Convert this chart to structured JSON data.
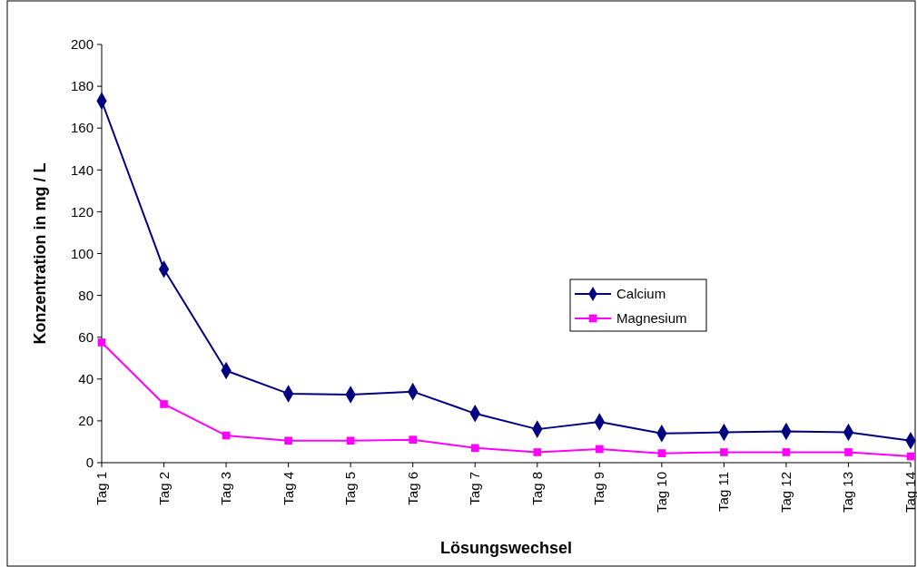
{
  "chart_data": {
    "type": "line",
    "xlabel": "Lösungswechsel",
    "ylabel": "Konzentration in mg / L",
    "categories": [
      "Tag 1",
      "Tag 2",
      "Tag 3",
      "Tag 4",
      "Tag 5",
      "Tag 6",
      "Tag 7",
      "Tag 8",
      "Tag 9",
      "Tag 10",
      "Tag 11",
      "Tag 12",
      "Tag 13",
      "Tag 14"
    ],
    "series": [
      {
        "name": "Calcium",
        "color": "#000080",
        "marker": "diamond",
        "values": [
          173,
          92.5,
          44,
          33,
          32.5,
          34,
          23.5,
          16,
          19.5,
          14,
          14.5,
          15,
          14.5,
          10.5
        ]
      },
      {
        "name": "Magnesium",
        "color": "#ff00ff",
        "marker": "square",
        "values": [
          57.5,
          28,
          13,
          10.5,
          10.5,
          11,
          7,
          5,
          6.5,
          4.5,
          5,
          5,
          5,
          3
        ]
      }
    ],
    "ylim": [
      0,
      200
    ],
    "yticks": [
      0,
      20,
      40,
      60,
      80,
      100,
      120,
      140,
      160,
      180,
      200
    ],
    "grid": false,
    "legend": "right",
    "line_style": "solid"
  }
}
